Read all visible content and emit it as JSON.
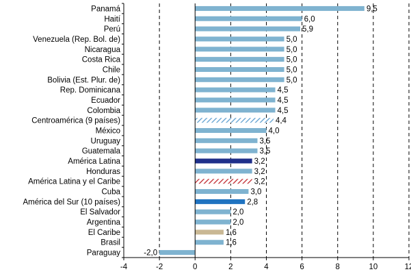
{
  "chart_data": {
    "type": "bar",
    "orientation": "horizontal",
    "categories": [
      "Panamá",
      "Haití",
      "Perú",
      "Venezuela (Rep. Bol. de)",
      "Nicaragua",
      "Costa Rica",
      "Chile",
      "Bolivia (Est. Plur. de)",
      "Rep. Dominicana",
      "Ecuador",
      "Colombia",
      "Centroamérica (9 países)",
      "México",
      "Uruguay",
      "Guatemala",
      "América Latina",
      "Honduras",
      "América Latina y el Caribe",
      "Cuba",
      "América del Sur (10 países)",
      "El Salvador",
      "Argentina",
      "El Caribe",
      "Brasil",
      "Paraguay"
    ],
    "values": [
      9.5,
      6.0,
      5.9,
      5.0,
      5.0,
      5.0,
      5.0,
      5.0,
      4.5,
      4.5,
      4.5,
      4.4,
      4.0,
      3.5,
      3.5,
      3.2,
      3.2,
      3.2,
      3.0,
      2.8,
      2.0,
      2.0,
      1.6,
      1.6,
      -2.0
    ],
    "value_labels": [
      "9,5",
      "6,0",
      "5,9",
      "5,0",
      "5,0",
      "5,0",
      "5,0",
      "5,0",
      "4,5",
      "4,5",
      "4,5",
      "4,4",
      "4,0",
      "3,5",
      "3,5",
      "3,2",
      "3,2",
      "3,2",
      "3,0",
      "2,8",
      "2,0",
      "2,0",
      "1,6",
      "1,6",
      "-2,0"
    ],
    "bar_styles": [
      "light",
      "light",
      "light",
      "light",
      "light",
      "light",
      "light",
      "light",
      "light",
      "light",
      "light",
      "hatch-blue",
      "light",
      "light",
      "light",
      "navy",
      "light",
      "hatch-red",
      "light",
      "blue",
      "light",
      "light",
      "tan",
      "light",
      "light"
    ],
    "colors": {
      "light": "#7fb3d0",
      "navy": "#1f2f8a",
      "blue": "#1f73c0",
      "tan": "#c9b894",
      "hatch_blue": "#5e9fd0",
      "hatch_red": "#c0282d"
    },
    "xlim": [
      -4,
      12
    ],
    "xticks": [
      -4,
      -2,
      0,
      2,
      4,
      6,
      8,
      10,
      12
    ],
    "xtick_labels": [
      "-4",
      "-2",
      "0",
      "2",
      "4",
      "6",
      "8",
      "10",
      "12"
    ],
    "grid": "vertical dashed",
    "legend": "none"
  }
}
